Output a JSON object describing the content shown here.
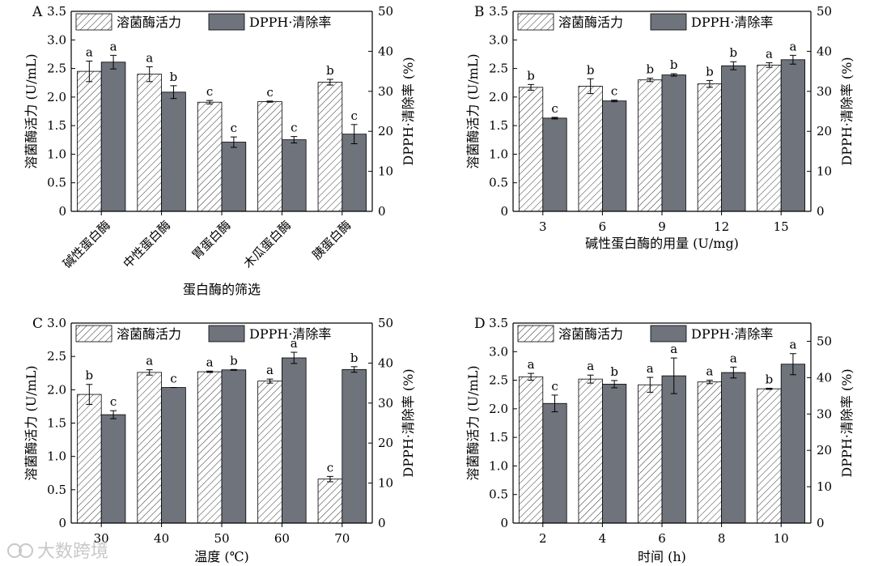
{
  "watermark": "大数跨境",
  "legend_labels": {
    "lysozyme": "溶菌酶活力",
    "dpph": "DPPH·清除率"
  },
  "colors": {
    "dpph_fill": "#6e737c",
    "hatch_stroke": "#333333",
    "axis": "#000000"
  },
  "chart_data": [
    {
      "panel": "A",
      "type": "bar",
      "title": "",
      "xlabel": "蛋白酶的筛选",
      "ylabel_left": "溶菌酶活力 (U/mL)",
      "ylabel_right": "DPPH·清除率 (%)",
      "categories": [
        "碱性蛋白酶",
        "中性蛋白酶",
        "胃蛋白酶",
        "木瓜蛋白酶",
        "胰蛋白酶"
      ],
      "rotate_xticks": true,
      "ylim_left": [
        0,
        3.5
      ],
      "yticks_left": [
        "0",
        "0.5",
        "1.0",
        "1.5",
        "2.0",
        "2.5",
        "3.0",
        "3.5"
      ],
      "ylim_right": [
        0,
        50
      ],
      "yticks_right": [
        "0",
        "10",
        "20",
        "30",
        "40",
        "50"
      ],
      "series": [
        {
          "name": "溶菌酶活力",
          "axis": "left",
          "values": [
            2.45,
            2.4,
            1.91,
            1.92,
            2.26
          ],
          "errors": [
            0.18,
            0.13,
            0.03,
            0.01,
            0.05
          ],
          "labels": [
            "a",
            "a",
            "c",
            "c",
            "b"
          ]
        },
        {
          "name": "DPPH·清除率",
          "axis": "right",
          "values": [
            37.3,
            29.8,
            17.3,
            17.9,
            19.3
          ],
          "errors": [
            1.7,
            1.6,
            1.3,
            0.8,
            2.4
          ],
          "labels": [
            "a",
            "b",
            "c",
            "c",
            "c"
          ]
        }
      ]
    },
    {
      "panel": "B",
      "type": "bar",
      "title": "",
      "xlabel": "碱性蛋白酶的用量 (U/mg)",
      "ylabel_left": "溶菌酶活力 (U/mL)",
      "ylabel_right": "DPPH·清除率 (%)",
      "categories": [
        "3",
        "6",
        "9",
        "12",
        "15"
      ],
      "rotate_xticks": false,
      "ylim_left": [
        0,
        3.5
      ],
      "yticks_left": [
        "0",
        "0.5",
        "1.0",
        "1.5",
        "2.0",
        "2.5",
        "3.0",
        "3.5"
      ],
      "ylim_right": [
        0,
        50
      ],
      "yticks_right": [
        "0",
        "10",
        "20",
        "30",
        "40",
        "50"
      ],
      "series": [
        {
          "name": "溶菌酶活力",
          "axis": "left",
          "values": [
            2.17,
            2.19,
            2.3,
            2.23,
            2.56
          ],
          "errors": [
            0.05,
            0.13,
            0.03,
            0.06,
            0.04
          ],
          "labels": [
            "b",
            "b",
            "b",
            "b",
            "a"
          ]
        },
        {
          "name": "DPPH·清除率",
          "axis": "right",
          "values": [
            23.3,
            27.6,
            34.1,
            36.4,
            37.9
          ],
          "errors": [
            0.2,
            0.2,
            0.3,
            1.0,
            1.1
          ],
          "labels": [
            "c",
            "c",
            "b",
            "b",
            "a"
          ]
        }
      ]
    },
    {
      "panel": "C",
      "type": "bar",
      "title": "",
      "xlabel": "温度 (℃)",
      "ylabel_left": "溶菌酶活力 (U/mL)",
      "ylabel_right": "DPPH·清除率 (%)",
      "categories": [
        "30",
        "40",
        "50",
        "60",
        "70"
      ],
      "rotate_xticks": false,
      "ylim_left": [
        0,
        3.0
      ],
      "yticks_left": [
        "0",
        "0.5",
        "1.0",
        "1.5",
        "2.0",
        "2.5",
        "3.0"
      ],
      "ylim_right": [
        0,
        50
      ],
      "yticks_right": [
        "0",
        "10",
        "20",
        "30",
        "40",
        "50"
      ],
      "series": [
        {
          "name": "溶菌酶活力",
          "axis": "left",
          "values": [
            1.93,
            2.26,
            2.27,
            2.13,
            0.66
          ],
          "errors": [
            0.15,
            0.04,
            0.01,
            0.03,
            0.04
          ],
          "labels": [
            "b",
            "a",
            "a",
            "a",
            "c"
          ]
        },
        {
          "name": "DPPH·清除率",
          "axis": "right",
          "values": [
            27.1,
            33.9,
            38.3,
            41.3,
            38.4
          ],
          "errors": [
            1.0,
            0.0,
            0.1,
            1.4,
            0.7
          ],
          "labels": [
            "c",
            "c",
            "b",
            "a",
            "b"
          ]
        }
      ]
    },
    {
      "panel": "D",
      "type": "bar",
      "title": "",
      "xlabel": "时间 (h)",
      "ylabel_left": "溶菌酶活力 (U/mL)",
      "ylabel_right": "DPPH·清除率 (%)",
      "categories": [
        "2",
        "4",
        "6",
        "8",
        "10"
      ],
      "rotate_xticks": false,
      "ylim_left": [
        0,
        3.5
      ],
      "yticks_left": [
        "0",
        "0.5",
        "1.0",
        "1.5",
        "2.0",
        "2.5",
        "3.0",
        "3.5"
      ],
      "ylim_right": [
        0,
        55
      ],
      "yticks_right": [
        "0",
        "10",
        "20",
        "30",
        "40",
        "50"
      ],
      "series": [
        {
          "name": "溶菌酶活力",
          "axis": "left",
          "values": [
            2.56,
            2.52,
            2.42,
            2.47,
            2.35
          ],
          "errors": [
            0.06,
            0.07,
            0.13,
            0.03,
            0.01
          ],
          "labels": [
            "a",
            "a",
            "a",
            "a",
            "b"
          ]
        },
        {
          "name": "DPPH·清除率",
          "axis": "right",
          "values": [
            32.9,
            38.2,
            40.5,
            41.4,
            43.7
          ],
          "errors": [
            2.3,
            1.0,
            4.9,
            1.5,
            2.9
          ],
          "labels": [
            "c",
            "b",
            "a",
            "a",
            "a"
          ]
        }
      ]
    }
  ]
}
